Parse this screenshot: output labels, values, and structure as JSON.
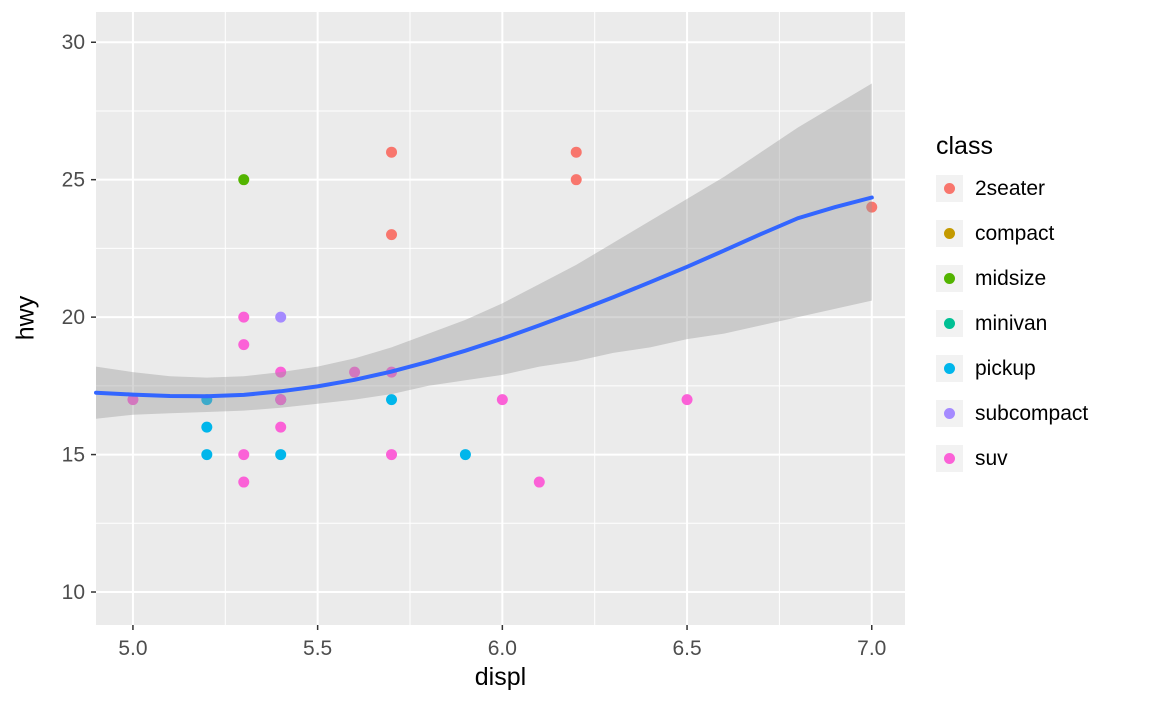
{
  "chart_data": {
    "type": "scatter",
    "title": "",
    "xlabel": "displ",
    "ylabel": "hwy",
    "legend_title": "class",
    "legend_position": "right",
    "grid": true,
    "panel_background": "#EBEBEB",
    "gridline_color": "#FFFFFF",
    "tick_label_color": "#4D4D4D",
    "tick_mark_color": "#333333",
    "x_domain": [
      4.9,
      7.09
    ],
    "y_domain": [
      8.8,
      31.1
    ],
    "x_ticks": [
      5.0,
      5.5,
      6.0,
      6.5,
      7.0
    ],
    "x_tick_labels": [
      "5.0",
      "5.5",
      "6.0",
      "6.5",
      "7.0"
    ],
    "x_minor_ticks": [
      5.25,
      5.75,
      6.25,
      6.75
    ],
    "y_ticks": [
      10,
      15,
      20,
      25,
      30
    ],
    "y_tick_labels": [
      "10",
      "15",
      "20",
      "25",
      "30"
    ],
    "y_minor_ticks": [
      12.5,
      17.5,
      22.5,
      27.5
    ],
    "series": [
      {
        "name": "2seater",
        "color": "#F8766D",
        "points": [
          [
            5.7,
            26
          ],
          [
            5.7,
            23
          ],
          [
            6.2,
            26
          ],
          [
            6.2,
            25
          ],
          [
            7.0,
            24
          ]
        ]
      },
      {
        "name": "compact",
        "color": "#C49A00",
        "points": []
      },
      {
        "name": "midsize",
        "color": "#53B400",
        "points": [
          [
            5.3,
            25
          ]
        ]
      },
      {
        "name": "minivan",
        "color": "#00C094",
        "points": []
      },
      {
        "name": "pickup",
        "color": "#00B6EB",
        "points": [
          [
            5.2,
            17
          ],
          [
            5.2,
            16
          ],
          [
            5.2,
            15
          ],
          [
            5.4,
            17
          ],
          [
            5.4,
            15
          ],
          [
            5.7,
            17
          ],
          [
            5.9,
            15
          ]
        ]
      },
      {
        "name": "subcompact",
        "color": "#A58AFF",
        "points": [
          [
            5.4,
            20
          ]
        ]
      },
      {
        "name": "suv",
        "color": "#FB61D7",
        "points": [
          [
            5.0,
            17
          ],
          [
            5.3,
            20
          ],
          [
            5.3,
            19
          ],
          [
            5.3,
            15
          ],
          [
            5.3,
            14
          ],
          [
            5.4,
            18
          ],
          [
            5.4,
            17
          ],
          [
            5.4,
            16
          ],
          [
            5.6,
            18
          ],
          [
            5.7,
            18
          ],
          [
            5.7,
            15
          ],
          [
            6.0,
            17
          ],
          [
            6.1,
            14
          ],
          [
            6.5,
            17
          ]
        ]
      }
    ],
    "smooth": {
      "line_color": "#3366FF",
      "ribbon_color": "#999999",
      "ribbon_opacity": 0.4,
      "line": [
        [
          4.9,
          17.25
        ],
        [
          5.0,
          17.18
        ],
        [
          5.1,
          17.13
        ],
        [
          5.2,
          17.12
        ],
        [
          5.3,
          17.17
        ],
        [
          5.4,
          17.3
        ],
        [
          5.5,
          17.48
        ],
        [
          5.6,
          17.72
        ],
        [
          5.7,
          18.02
        ],
        [
          5.8,
          18.38
        ],
        [
          5.9,
          18.78
        ],
        [
          6.0,
          19.22
        ],
        [
          6.1,
          19.7
        ],
        [
          6.2,
          20.2
        ],
        [
          6.3,
          20.72
        ],
        [
          6.4,
          21.27
        ],
        [
          6.5,
          21.83
        ],
        [
          6.6,
          22.42
        ],
        [
          6.7,
          23.02
        ],
        [
          6.8,
          23.6
        ],
        [
          6.9,
          24.0
        ],
        [
          7.0,
          24.35
        ]
      ],
      "ribbon": [
        [
          4.9,
          16.3,
          18.2
        ],
        [
          5.0,
          16.45,
          18.0
        ],
        [
          5.1,
          16.5,
          17.85
        ],
        [
          5.2,
          16.55,
          17.8
        ],
        [
          5.3,
          16.6,
          17.85
        ],
        [
          5.4,
          16.7,
          18.0
        ],
        [
          5.5,
          16.85,
          18.2
        ],
        [
          5.6,
          17.0,
          18.5
        ],
        [
          5.7,
          17.2,
          18.9
        ],
        [
          5.8,
          17.5,
          19.4
        ],
        [
          5.9,
          17.7,
          19.9
        ],
        [
          6.0,
          17.9,
          20.5
        ],
        [
          6.1,
          18.2,
          21.2
        ],
        [
          6.2,
          18.4,
          21.9
        ],
        [
          6.3,
          18.7,
          22.7
        ],
        [
          6.4,
          18.9,
          23.5
        ],
        [
          6.5,
          19.2,
          24.3
        ],
        [
          6.6,
          19.4,
          25.1
        ],
        [
          6.7,
          19.7,
          26.0
        ],
        [
          6.8,
          20.0,
          26.9
        ],
        [
          6.9,
          20.3,
          27.7
        ],
        [
          7.0,
          20.6,
          28.5
        ]
      ]
    }
  }
}
